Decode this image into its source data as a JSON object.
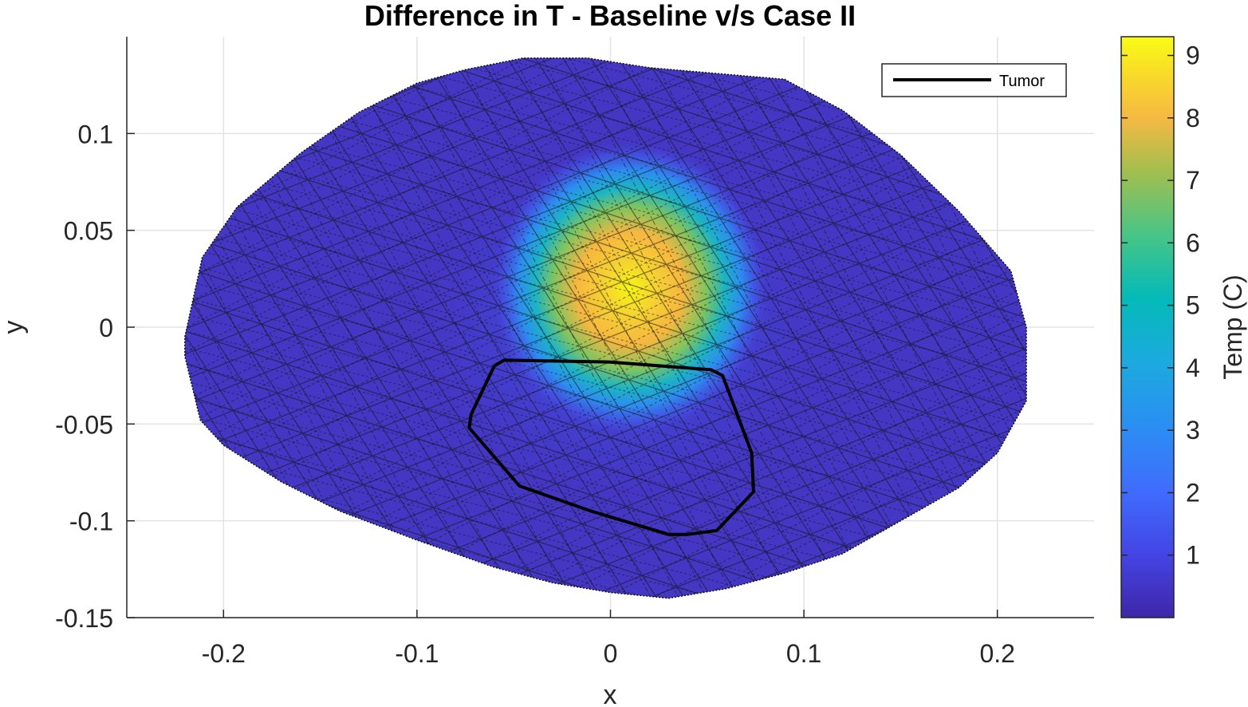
{
  "chart_data": {
    "type": "heatmap",
    "title": "Difference in T - Baseline v/s Case II",
    "xlabel": "x",
    "ylabel": "y",
    "xlim": [
      -0.25,
      0.25
    ],
    "ylim": [
      -0.15,
      0.15
    ],
    "xticks": [
      -0.2,
      -0.1,
      0,
      0.1,
      0.2
    ],
    "xtick_labels": [
      "-0.2",
      "-0.1",
      "0",
      "0.1",
      "0.2"
    ],
    "yticks": [
      -0.15,
      -0.1,
      -0.05,
      0,
      0.05,
      0.1
    ],
    "ytick_labels": [
      "-0.15",
      "-0.1",
      "-0.05",
      "0",
      "0.05",
      "0.1"
    ],
    "grid": true,
    "legend": {
      "entries": [
        "Tumor"
      ],
      "placement": "top-right"
    },
    "colorbar": {
      "label": "Temp (C)",
      "range": [
        0,
        9.3
      ],
      "ticks": [
        1,
        2,
        3,
        4,
        5,
        6,
        7,
        8,
        9
      ],
      "tick_labels": [
        "1",
        "2",
        "3",
        "4",
        "5",
        "6",
        "7",
        "8",
        "9"
      ],
      "colormap": "parula"
    },
    "domain_boundary": {
      "x": [
        -0.22,
        -0.211,
        -0.193,
        -0.16,
        -0.13,
        -0.1,
        -0.075,
        -0.045,
        -0.012,
        0.02,
        0.055,
        0.09,
        0.12,
        0.15,
        0.18,
        0.207,
        0.215,
        0.215,
        0.2,
        0.18,
        0.15,
        0.12,
        0.09,
        0.06,
        0.03,
        0.0,
        -0.03,
        -0.06,
        -0.1,
        -0.14,
        -0.17,
        -0.2,
        -0.212,
        -0.22
      ],
      "y": [
        -0.005,
        0.036,
        0.062,
        0.09,
        0.111,
        0.126,
        0.133,
        0.139,
        0.139,
        0.134,
        0.131,
        0.128,
        0.112,
        0.089,
        0.06,
        0.029,
        0.0,
        -0.038,
        -0.065,
        -0.083,
        -0.1,
        -0.117,
        -0.127,
        -0.135,
        -0.14,
        -0.137,
        -0.132,
        -0.124,
        -0.11,
        -0.095,
        -0.08,
        -0.061,
        -0.048,
        -0.015
      ]
    },
    "hotspot": {
      "center_x": 0.01,
      "center_y": 0.02,
      "peak": 9.3,
      "baseline": 0.3
    },
    "series": [
      {
        "name": "Tumor",
        "x": [
          -0.06,
          -0.055,
          0.0,
          0.052,
          0.058,
          0.073,
          0.074,
          0.055,
          0.04,
          0.03,
          -0.01,
          -0.047,
          -0.073,
          -0.072,
          -0.06
        ],
        "y": [
          -0.02,
          -0.017,
          -0.018,
          -0.022,
          -0.025,
          -0.065,
          -0.085,
          -0.105,
          -0.107,
          -0.107,
          -0.095,
          -0.082,
          -0.052,
          -0.045,
          -0.02
        ]
      }
    ]
  }
}
